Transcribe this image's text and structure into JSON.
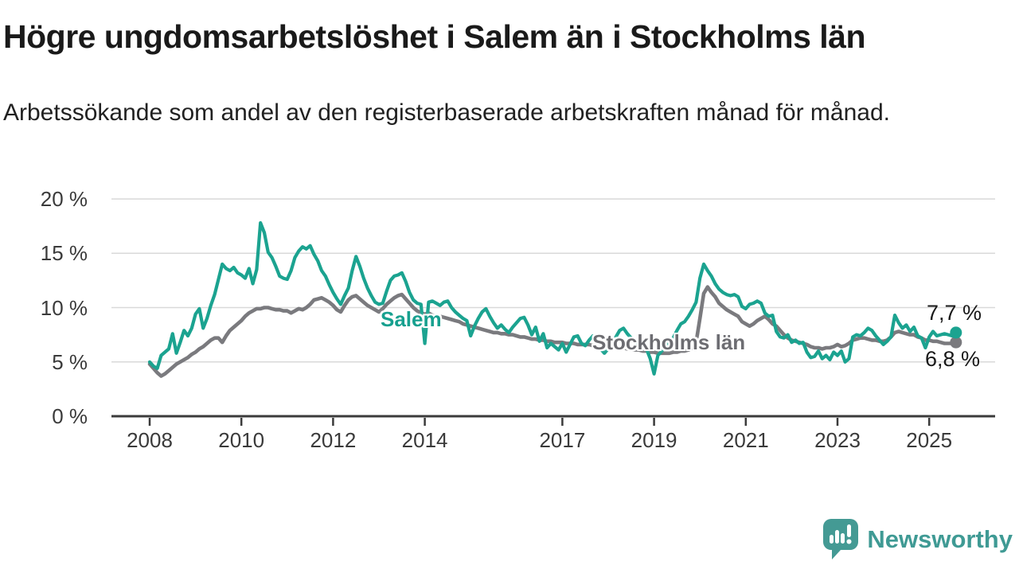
{
  "header": {
    "title": "Högre ungdomsarbetslöshet i Salem än i Stockholms län",
    "subtitle": "Arbetssökande som andel av den registerbaserade arbetskraften månad för månad."
  },
  "chart_data": {
    "type": "line",
    "x_unit": "month",
    "start": "2008-01",
    "end": "2025-08",
    "ylim": [
      0,
      20
    ],
    "grid": "horizontal",
    "y_ticks": [
      {
        "value": 20,
        "label": "20 %"
      },
      {
        "value": 15,
        "label": "15 %"
      },
      {
        "value": 10,
        "label": "10 %"
      },
      {
        "value": 5,
        "label": "5 %"
      },
      {
        "value": 0,
        "label": "0 %"
      }
    ],
    "x_ticks": [
      {
        "year": 2008,
        "label": "2008"
      },
      {
        "year": 2010,
        "label": "2010"
      },
      {
        "year": 2012,
        "label": "2012"
      },
      {
        "year": 2014,
        "label": "2014"
      },
      {
        "year": 2017,
        "label": "2017"
      },
      {
        "year": 2019,
        "label": "2019"
      },
      {
        "year": 2021,
        "label": "2021"
      },
      {
        "year": 2023,
        "label": "2023"
      },
      {
        "year": 2025,
        "label": "2025"
      }
    ],
    "series": [
      {
        "name": "Stockholms län",
        "color": "#7a7a7e",
        "label_color": "#6d6d72",
        "end_label": "6,8 %",
        "end_value": 6.8,
        "values": [
          4.8,
          4.4,
          4.0,
          3.7,
          3.9,
          4.2,
          4.5,
          4.8,
          5.0,
          5.2,
          5.4,
          5.7,
          5.9,
          6.2,
          6.4,
          6.7,
          7.0,
          7.2,
          7.2,
          6.8,
          7.4,
          7.9,
          8.2,
          8.5,
          8.8,
          9.2,
          9.5,
          9.7,
          9.9,
          9.9,
          10.0,
          10.0,
          9.9,
          9.8,
          9.8,
          9.7,
          9.7,
          9.5,
          9.7,
          9.9,
          9.8,
          10.0,
          10.3,
          10.7,
          10.8,
          10.9,
          10.7,
          10.5,
          10.2,
          9.8,
          9.6,
          10.2,
          10.7,
          11.0,
          11.1,
          10.8,
          10.5,
          10.2,
          10.0,
          9.8,
          9.6,
          9.9,
          10.3,
          10.6,
          10.9,
          11.1,
          11.2,
          10.8,
          10.4,
          10.0,
          9.7,
          9.5,
          9.4,
          9.5,
          9.3,
          9.2,
          9.2,
          9.1,
          9.0,
          8.9,
          8.8,
          8.7,
          8.5,
          8.4,
          8.3,
          8.2,
          8.1,
          8.0,
          7.9,
          7.8,
          7.7,
          7.7,
          7.6,
          7.6,
          7.5,
          7.5,
          7.4,
          7.3,
          7.3,
          7.2,
          7.1,
          7.1,
          7.0,
          7.0,
          6.9,
          6.9,
          6.8,
          6.8,
          6.8,
          6.7,
          6.7,
          6.7,
          6.6,
          6.6,
          6.6,
          6.6,
          6.5,
          6.5,
          6.5,
          6.4,
          6.4,
          6.4,
          6.3,
          6.3,
          6.3,
          6.2,
          6.2,
          6.1,
          6.1,
          6.0,
          6.0,
          5.9,
          5.9,
          5.8,
          5.8,
          5.8,
          5.8,
          5.9,
          5.9,
          6.0,
          6.0,
          6.1,
          6.3,
          6.8,
          9.0,
          11.3,
          11.9,
          11.4,
          11.0,
          10.4,
          10.1,
          9.8,
          9.6,
          9.4,
          9.2,
          8.7,
          8.5,
          8.3,
          8.5,
          8.8,
          9.0,
          9.2,
          8.9,
          8.5,
          8.3,
          7.9,
          7.5,
          7.2,
          7.0,
          6.9,
          6.8,
          6.7,
          6.6,
          6.4,
          6.3,
          6.3,
          6.2,
          6.3,
          6.3,
          6.4,
          6.6,
          6.4,
          6.5,
          6.7,
          7.0,
          7.1,
          7.2,
          7.2,
          7.1,
          7.0,
          7.0,
          6.9,
          6.9,
          7.0,
          7.3,
          7.7,
          7.8,
          7.7,
          7.6,
          7.5,
          7.5,
          7.3,
          7.2,
          7.0,
          7.0,
          6.9,
          6.9,
          6.8,
          6.7,
          6.7,
          6.7,
          6.8
        ]
      },
      {
        "name": "Salem",
        "color": "#1ba390",
        "label_color": "#17a08f",
        "end_label": "7,7 %",
        "end_value": 7.7,
        "values": [
          5.0,
          4.6,
          4.4,
          5.6,
          5.9,
          6.2,
          7.6,
          5.8,
          6.8,
          7.9,
          7.4,
          8.1,
          9.4,
          9.9,
          8.1,
          9.0,
          10.2,
          11.2,
          12.6,
          14.0,
          13.6,
          13.4,
          13.7,
          13.2,
          13.0,
          12.7,
          13.6,
          12.2,
          13.5,
          17.8,
          16.9,
          15.1,
          14.6,
          13.8,
          12.9,
          12.7,
          12.6,
          13.4,
          14.6,
          15.2,
          15.6,
          15.4,
          15.7,
          14.9,
          14.3,
          13.4,
          12.9,
          12.1,
          11.4,
          10.8,
          10.3,
          11.1,
          11.8,
          13.4,
          14.7,
          13.8,
          12.7,
          11.8,
          11.1,
          10.5,
          10.3,
          10.4,
          11.5,
          12.5,
          12.9,
          13.0,
          13.2,
          12.4,
          11.4,
          10.7,
          10.4,
          10.3,
          6.7,
          10.5,
          10.6,
          10.4,
          10.2,
          10.5,
          10.6,
          10.0,
          9.6,
          9.3,
          9.0,
          8.8,
          7.4,
          8.3,
          9.0,
          9.6,
          9.9,
          9.2,
          8.6,
          8.1,
          8.4,
          8.0,
          7.7,
          8.2,
          8.6,
          9.0,
          9.1,
          8.4,
          7.5,
          8.2,
          6.9,
          7.6,
          6.3,
          6.7,
          6.4,
          6.1,
          6.7,
          5.9,
          6.6,
          7.3,
          7.4,
          6.7,
          6.5,
          7.0,
          7.4,
          6.8,
          6.2,
          5.8,
          6.2,
          6.8,
          7.3,
          7.9,
          8.1,
          7.6,
          7.2,
          6.9,
          6.6,
          6.4,
          6.2,
          5.3,
          3.9,
          5.6,
          6.0,
          6.4,
          6.8,
          7.2,
          7.9,
          8.5,
          8.7,
          9.2,
          9.8,
          10.5,
          12.7,
          14.0,
          13.4,
          12.9,
          12.2,
          11.7,
          11.4,
          11.2,
          11.1,
          11.2,
          11.0,
          10.1,
          9.9,
          10.3,
          10.4,
          10.6,
          10.4,
          9.5,
          9.2,
          9.3,
          7.8,
          7.3,
          7.2,
          7.5,
          6.8,
          7.0,
          6.7,
          6.8,
          5.9,
          5.4,
          5.5,
          6.0,
          5.3,
          5.6,
          5.2,
          5.9,
          5.6,
          6.0,
          5.0,
          5.3,
          7.3,
          7.5,
          7.4,
          7.7,
          8.1,
          7.9,
          7.4,
          7.0,
          6.6,
          6.9,
          7.3,
          9.3,
          8.6,
          8.1,
          8.4,
          7.8,
          8.2,
          7.4,
          7.2,
          6.3,
          7.3,
          7.8,
          7.4,
          7.5,
          7.6,
          7.5,
          7.4,
          7.7
        ]
      }
    ],
    "styling": {
      "gridline_color": "#d9d9d9",
      "axis_color": "#3b3b3b"
    }
  },
  "footer": {
    "brand": "Newsworthy",
    "brand_color": "#3f9a94"
  }
}
